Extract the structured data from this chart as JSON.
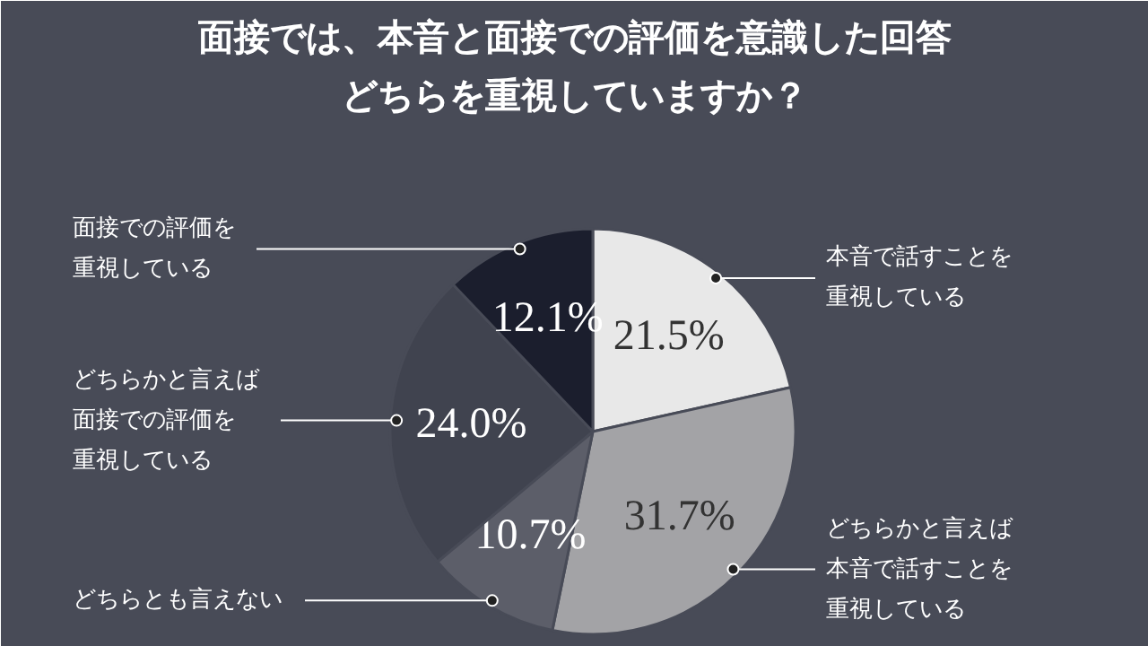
{
  "chart_data": {
    "type": "pie",
    "title": "面接では、本音と面接での評価を意識した回答どちらを重視していますか？",
    "categories": [
      "本音で話すことを重視している",
      "どちらかと言えば本音で話すことを重視している",
      "どちらとも言えない",
      "どちらかと言えば面接での評価を重視している",
      "面接での評価を重視している"
    ],
    "values": [
      21.5,
      31.7,
      10.7,
      24.0,
      12.1
    ],
    "colors": [
      "#e8e8e8",
      "#a3a3a6",
      "#5c5e69",
      "#40434f",
      "#1b1e2d"
    ],
    "value_labels": [
      "21.5%",
      "31.7%",
      "10.7%",
      "24.0%",
      "12.1%"
    ]
  }
}
